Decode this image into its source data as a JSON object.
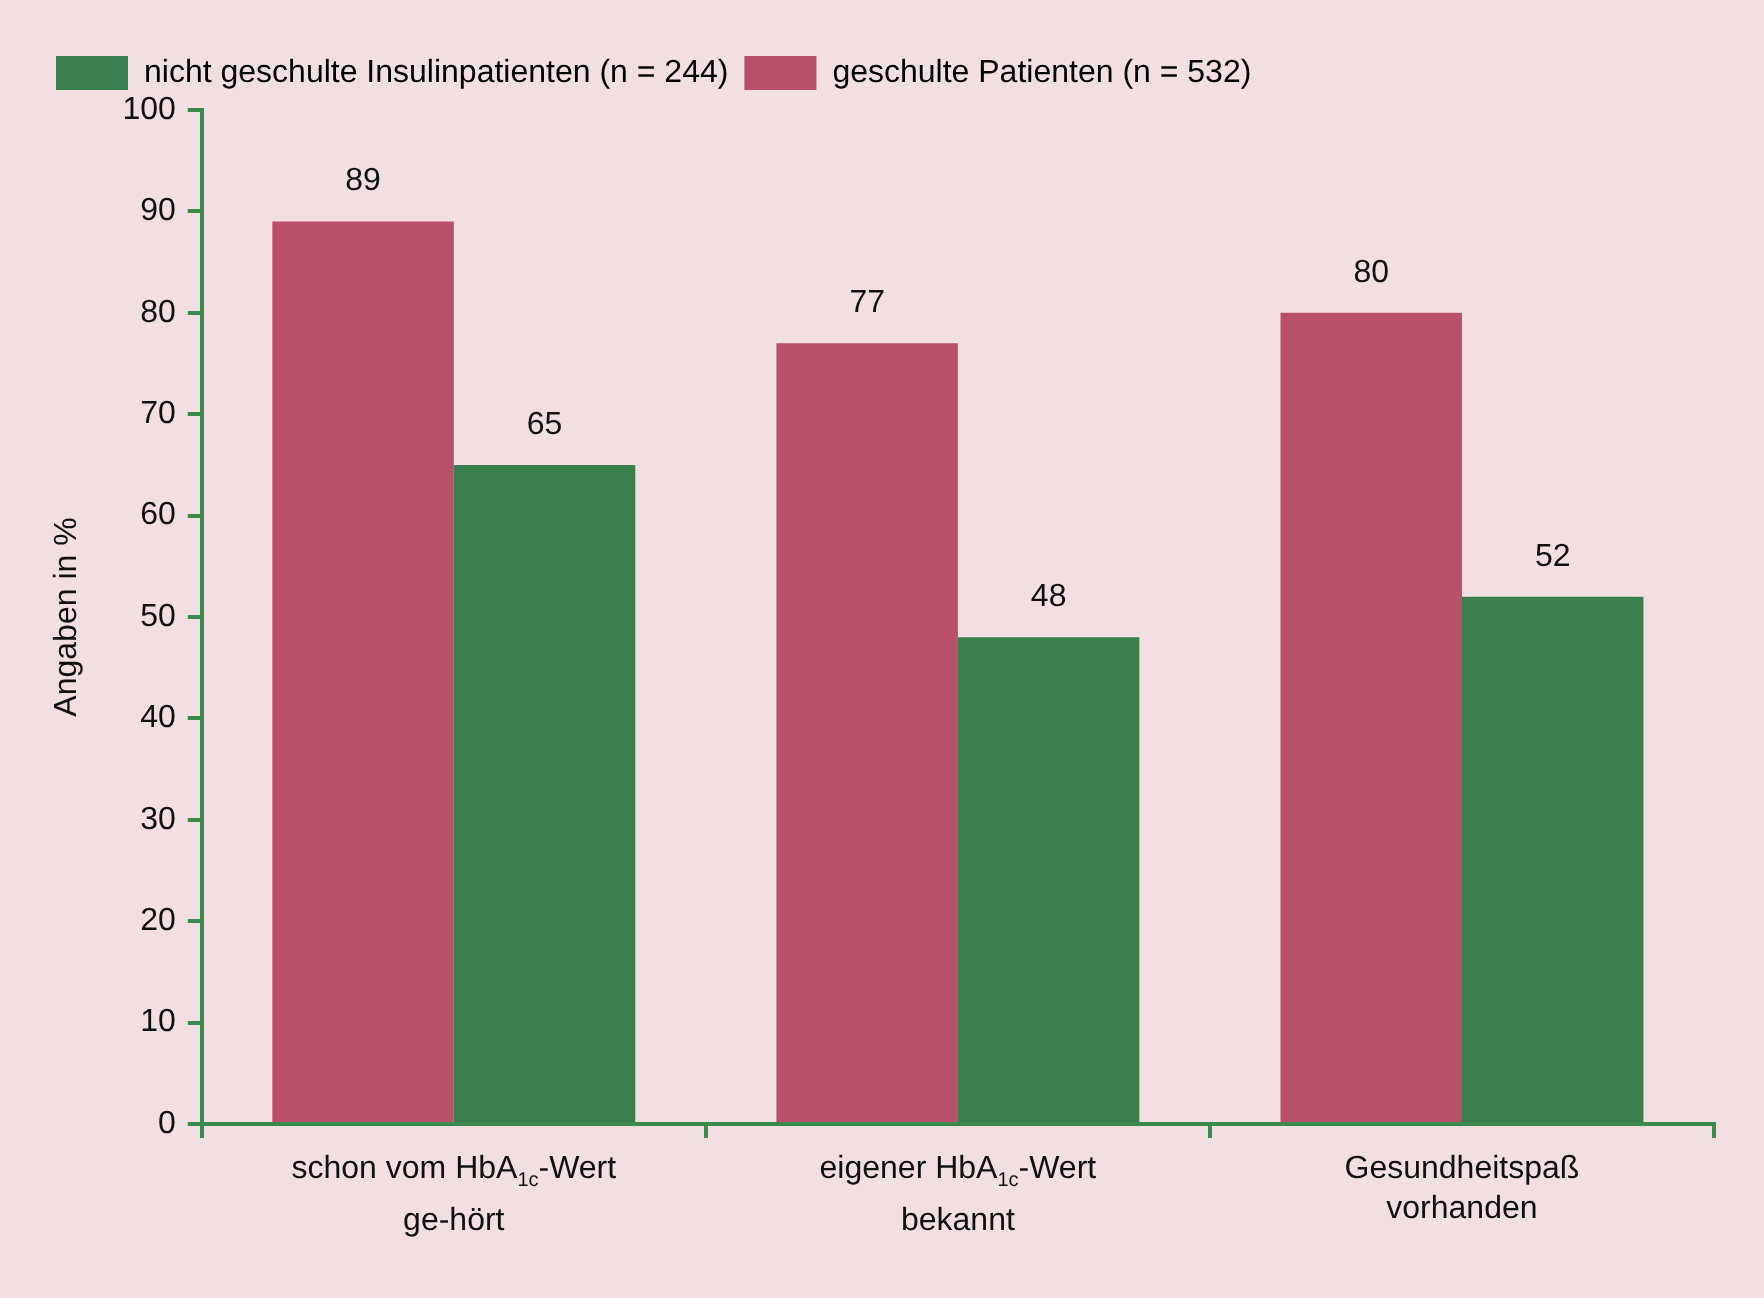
{
  "chart_data": {
    "type": "bar",
    "ylabel": "Angaben in %",
    "categories": [
      "schon vom HbA$_{1c}$-Wert ge-hört",
      "eigener HbA$_{1c}$-Wert bekannt",
      "Gesundheitspaß vorhanden"
    ],
    "series": [
      {
        "name": "geschulte Patienten (n = 532)",
        "color": "#b94f6a",
        "values": [
          89,
          77,
          80
        ]
      },
      {
        "name": "nicht geschulte Insulinpatienten (n = 244)",
        "color": "#3b7f4f",
        "values": [
          65,
          48,
          52
        ]
      }
    ],
    "ylim": [
      0,
      100
    ],
    "yticks": [
      0,
      10,
      20,
      30,
      40,
      50,
      60,
      70,
      80,
      90,
      100
    ],
    "data_labels": true,
    "legend": "top left"
  }
}
